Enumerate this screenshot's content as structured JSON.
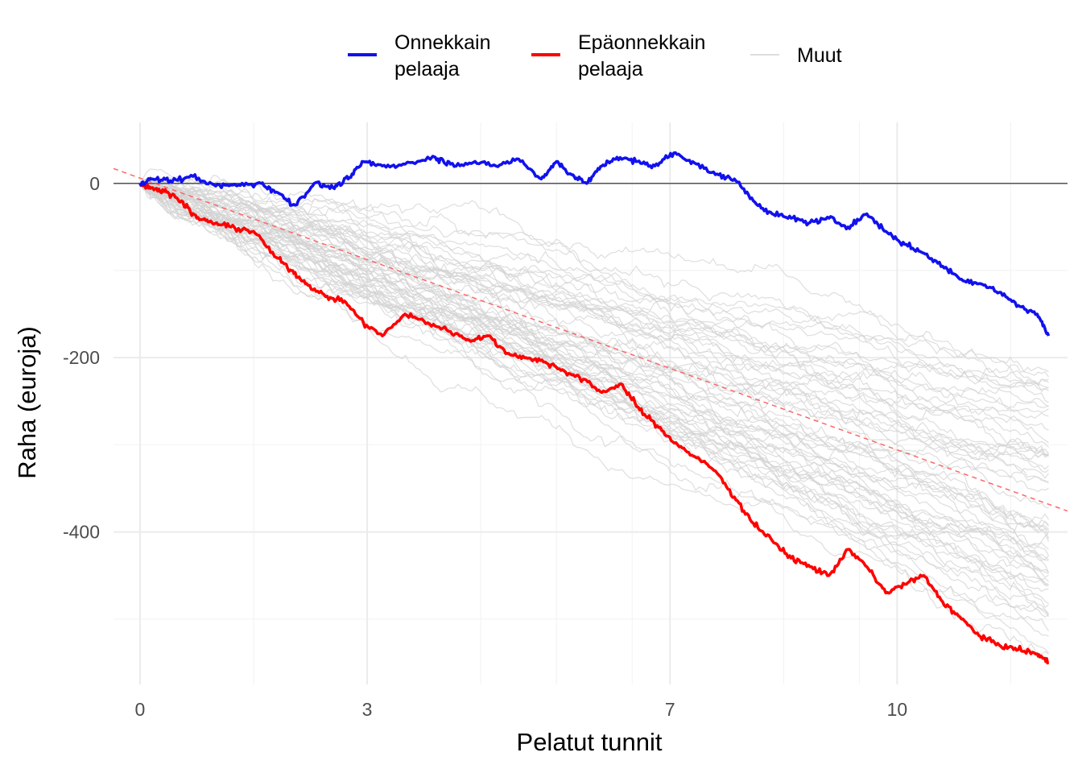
{
  "chart_data": {
    "type": "line",
    "xlabel": "Pelatut tunnit",
    "ylabel": "Raha (euroja)",
    "xlim": [
      -0.35,
      12.25
    ],
    "ylim": [
      -575,
      70
    ],
    "x_ticks": [
      0,
      3,
      7,
      10
    ],
    "x_tick_labels": [
      "0",
      "3",
      "7",
      "10"
    ],
    "x_minor_ticks": [
      1.5,
      4.5,
      5.5,
      6.5,
      8.5,
      9.5,
      11.5
    ],
    "y_ticks": [
      0,
      -200,
      -400
    ],
    "y_tick_labels": [
      "0",
      "-200",
      "-400"
    ],
    "y_minor_ticks": [
      -100,
      -300,
      -500
    ],
    "grid": true,
    "legend_position": "top",
    "reference_line": {
      "y": 0,
      "color": "#555555"
    },
    "expected_trend": {
      "x": [
        -0.35,
        12.25
      ],
      "y": [
        17,
        -376
      ],
      "color": "#ff6666",
      "style": "dashed"
    },
    "series": [
      {
        "name": "Onnekkain pelaaja",
        "name_lines": [
          "Onnekkain",
          "pelaaja"
        ],
        "color": "#1111ee",
        "x": [
          0,
          0.15,
          0.4,
          0.7,
          1.0,
          1.3,
          1.6,
          1.8,
          2.05,
          2.3,
          2.55,
          2.75,
          2.95,
          3.2,
          3.5,
          3.9,
          4.1,
          4.4,
          4.7,
          5.0,
          5.3,
          5.5,
          5.7,
          5.9,
          6.1,
          6.3,
          6.55,
          6.8,
          7.05,
          7.3,
          7.6,
          7.85,
          8.1,
          8.35,
          8.6,
          8.85,
          9.1,
          9.35,
          9.6,
          9.85,
          10.1,
          10.35,
          10.6,
          10.85,
          11.1,
          11.35,
          11.6,
          11.85,
          12.0
        ],
        "y": [
          0,
          5,
          3,
          8,
          -3,
          -2,
          0,
          -10,
          -25,
          0,
          -5,
          5,
          25,
          20,
          22,
          30,
          22,
          24,
          20,
          28,
          5,
          25,
          10,
          0,
          20,
          30,
          25,
          20,
          35,
          25,
          10,
          5,
          -20,
          -35,
          -40,
          -45,
          -40,
          -50,
          -35,
          -55,
          -70,
          -80,
          -95,
          -110,
          -115,
          -125,
          -140,
          -150,
          -175
        ]
      },
      {
        "name": "Epäonnekkain pelaaja",
        "name_lines": [
          "Epäonnekkain",
          "pelaaja"
        ],
        "color": "#ff0000",
        "x": [
          0,
          0.15,
          0.35,
          0.55,
          0.75,
          0.95,
          1.2,
          1.5,
          1.8,
          2.0,
          2.2,
          2.45,
          2.7,
          2.95,
          3.2,
          3.5,
          3.8,
          4.1,
          4.35,
          4.6,
          4.85,
          5.1,
          5.35,
          5.6,
          5.85,
          6.1,
          6.35,
          6.6,
          6.85,
          7.1,
          7.35,
          7.6,
          7.85,
          8.1,
          8.35,
          8.6,
          8.85,
          9.1,
          9.35,
          9.6,
          9.85,
          10.1,
          10.35,
          10.6,
          10.85,
          11.1,
          11.35,
          11.6,
          11.85,
          12.0
        ],
        "y": [
          0,
          -5,
          -10,
          -20,
          -40,
          -45,
          -50,
          -55,
          -85,
          -100,
          -115,
          -130,
          -135,
          -160,
          -175,
          -150,
          -160,
          -170,
          -180,
          -175,
          -195,
          -200,
          -205,
          -215,
          -225,
          -240,
          -230,
          -260,
          -280,
          -300,
          -315,
          -330,
          -360,
          -390,
          -410,
          -430,
          -440,
          -450,
          -420,
          -440,
          -470,
          -460,
          -450,
          -480,
          -500,
          -520,
          -530,
          -535,
          -540,
          -550
        ]
      },
      {
        "name": "Muut",
        "color": "#d3d3d3",
        "count": 60
      }
    ]
  }
}
